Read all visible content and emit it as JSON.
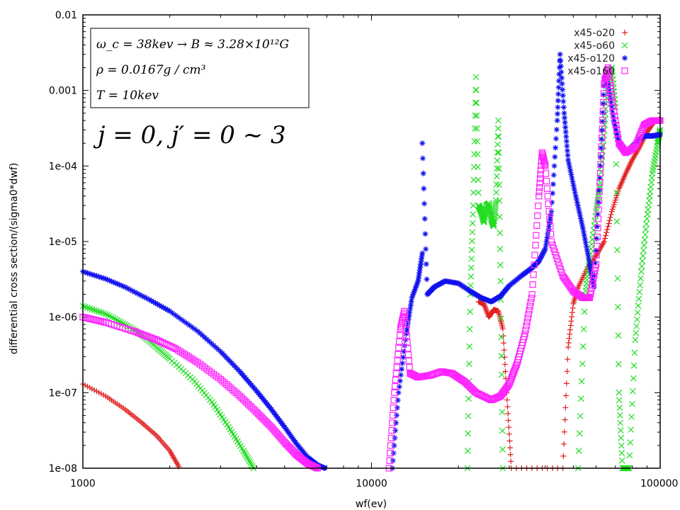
{
  "chart_data": {
    "type": "scatter",
    "title": "",
    "xlabel": "wf(ev)",
    "ylabel": "differential cross section/(sigma0*dwf)",
    "xscale": "log",
    "yscale": "log",
    "xlim": [
      1000,
      100000
    ],
    "ylim": [
      1e-08,
      0.01
    ],
    "x_ticks": [
      {
        "value": 1000,
        "label": "1000"
      },
      {
        "value": 10000,
        "label": "10000"
      },
      {
        "value": 100000,
        "label": "100000"
      }
    ],
    "y_ticks": [
      {
        "value": 0.01,
        "label": "0.01"
      },
      {
        "value": 0.001,
        "label": "0.001"
      },
      {
        "value": 0.0001,
        "label": "1e-04"
      },
      {
        "value": 1e-05,
        "label": "1e-05"
      },
      {
        "value": 1e-06,
        "label": "1e-06"
      },
      {
        "value": 1e-07,
        "label": "1e-07"
      },
      {
        "value": 1e-08,
        "label": "1e-08"
      }
    ],
    "grid": false,
    "legend_position": "top-right",
    "annotation_box": [
      "ω_c = 38kev → B ≈ 3.28×10¹²G",
      "ρ = 0.0167g / cm³",
      "T = 10kev"
    ],
    "annotation_large": "j = 0, j′ = 0 ~ 3",
    "series": [
      {
        "name": "x45-o20",
        "color": "#e02020",
        "marker": "plus",
        "points": [
          [
            1000,
            1.3e-07
          ],
          [
            1200,
            9e-08
          ],
          [
            1400,
            6e-08
          ],
          [
            1600,
            4e-08
          ],
          [
            1800,
            2.7e-08
          ],
          [
            2000,
            1.7e-08
          ],
          [
            2150,
            1.05e-08
          ],
          [
            23500,
            1.6e-06
          ],
          [
            24500,
            1.5e-06
          ],
          [
            25500,
            1e-06
          ],
          [
            26500,
            1.25e-06
          ],
          [
            27500,
            1.2e-06
          ],
          [
            28500,
            7e-07
          ],
          [
            29500,
            8e-08
          ],
          [
            30500,
            1e-08
          ],
          [
            46000,
            1e-08
          ],
          [
            48000,
            4e-07
          ],
          [
            50000,
            1.5e-06
          ],
          [
            52000,
            2.5e-06
          ],
          [
            56000,
            4.5e-06
          ],
          [
            60000,
            6.5e-06
          ],
          [
            64000,
            1e-05
          ],
          [
            68000,
            2.5e-05
          ],
          [
            72000,
            5e-05
          ],
          [
            76000,
            8e-05
          ],
          [
            80000,
            0.00012
          ],
          [
            85000,
            0.00018
          ],
          [
            90000,
            0.00028
          ],
          [
            95000,
            0.00038
          ],
          [
            100000,
            0.00042
          ]
        ]
      },
      {
        "name": "x45-o60",
        "color": "#22dd22",
        "marker": "cross",
        "points": [
          [
            1000,
            1.4e-06
          ],
          [
            1200,
            1.1e-06
          ],
          [
            1400,
            8e-07
          ],
          [
            1600,
            5.8e-07
          ],
          [
            1800,
            4e-07
          ],
          [
            2000,
            2.8e-07
          ],
          [
            2400,
            1.5e-07
          ],
          [
            2800,
            7.5e-08
          ],
          [
            3200,
            3.5e-08
          ],
          [
            3600,
            1.7e-08
          ],
          [
            3900,
            1e-08
          ],
          [
            21500,
            1e-08
          ],
          [
            22000,
            2e-06
          ],
          [
            22500,
            3e-05
          ],
          [
            23000,
            0.0015
          ],
          [
            23500,
            3e-05
          ],
          [
            24000,
            2.5e-05
          ],
          [
            24500,
            1.8e-05
          ],
          [
            25000,
            3e-05
          ],
          [
            25500,
            3.2e-05
          ],
          [
            26000,
            2e-05
          ],
          [
            26500,
            1.6e-05
          ],
          [
            27000,
            3.5e-05
          ],
          [
            27500,
            0.0004
          ],
          [
            28000,
            3e-06
          ],
          [
            28500,
            1e-08
          ],
          [
            52000,
            1e-08
          ],
          [
            55000,
            2e-06
          ],
          [
            57000,
            6e-06
          ],
          [
            60000,
            2.5e-05
          ],
          [
            62000,
            6e-05
          ],
          [
            64000,
            0.0003
          ],
          [
            66000,
            0.0015
          ],
          [
            68000,
            0.002
          ],
          [
            70000,
            0.0006
          ],
          [
            72000,
            1e-07
          ],
          [
            74000,
            1e-08
          ],
          [
            78000,
            1e-08
          ],
          [
            82000,
            5e-07
          ],
          [
            86000,
            4e-06
          ],
          [
            90000,
            2e-05
          ],
          [
            94000,
            8e-05
          ],
          [
            98000,
            0.0002
          ],
          [
            100000,
            0.0003
          ]
        ]
      },
      {
        "name": "x45-o120",
        "color": "#1010ee",
        "marker": "star",
        "points": [
          [
            1000,
            4e-06
          ],
          [
            1200,
            3.2e-06
          ],
          [
            1400,
            2.5e-06
          ],
          [
            1700,
            1.7e-06
          ],
          [
            2000,
            1.2e-06
          ],
          [
            2500,
            6.5e-07
          ],
          [
            3000,
            3.5e-07
          ],
          [
            3500,
            1.9e-07
          ],
          [
            4000,
            1.05e-07
          ],
          [
            4500,
            6e-08
          ],
          [
            5000,
            3.5e-08
          ],
          [
            5500,
            2.1e-08
          ],
          [
            6000,
            1.4e-08
          ],
          [
            6500,
            1.1e-08
          ],
          [
            6900,
            1e-08
          ],
          [
            11800,
            1e-08
          ],
          [
            12400,
            1e-07
          ],
          [
            13200,
            6e-07
          ],
          [
            13800,
            1.8e-06
          ],
          [
            14500,
            3e-06
          ],
          [
            15000,
            7e-06
          ],
          [
            15000,
            0.0002
          ],
          [
            15600,
            2e-06
          ],
          [
            16500,
            2.5e-06
          ],
          [
            18000,
            3e-06
          ],
          [
            20000,
            2.8e-06
          ],
          [
            22000,
            2.2e-06
          ],
          [
            24000,
            1.8e-06
          ],
          [
            26000,
            1.6e-06
          ],
          [
            28000,
            1.9e-06
          ],
          [
            30000,
            2.6e-06
          ],
          [
            33000,
            3.5e-06
          ],
          [
            36000,
            4.5e-06
          ],
          [
            38000,
            5.5e-06
          ],
          [
            40000,
            8e-06
          ],
          [
            42000,
            2.5e-05
          ],
          [
            44000,
            0.0004
          ],
          [
            45000,
            0.003
          ],
          [
            46500,
            0.0005
          ],
          [
            48000,
            0.00012
          ],
          [
            51000,
            4e-05
          ],
          [
            54000,
            1.5e-05
          ],
          [
            57000,
            5e-06
          ],
          [
            59000,
            2.5e-06
          ],
          [
            62000,
            0.0001
          ],
          [
            64000,
            0.0015
          ],
          [
            66000,
            0.0012
          ],
          [
            69000,
            0.0004
          ],
          [
            72000,
            0.0002
          ],
          [
            76000,
            0.00015
          ],
          [
            82000,
            0.0002
          ],
          [
            88000,
            0.00025
          ],
          [
            94000,
            0.00025
          ],
          [
            100000,
            0.00026
          ]
        ]
      },
      {
        "name": "x45-o160",
        "color": "#ff22ff",
        "marker": "square",
        "points": [
          [
            1000,
            1e-06
          ],
          [
            1200,
            8.5e-07
          ],
          [
            1500,
            6.5e-07
          ],
          [
            1800,
            5e-07
          ],
          [
            2100,
            3.8e-07
          ],
          [
            2500,
            2.5e-07
          ],
          [
            3000,
            1.5e-07
          ],
          [
            3500,
            9e-08
          ],
          [
            4000,
            5.5e-08
          ],
          [
            4500,
            3.5e-08
          ],
          [
            5000,
            2.2e-08
          ],
          [
            5500,
            1.5e-08
          ],
          [
            6000,
            1.15e-08
          ],
          [
            6500,
            1e-08
          ],
          [
            11500,
            1e-08
          ],
          [
            12000,
            1e-07
          ],
          [
            12600,
            7e-07
          ],
          [
            13000,
            1.2e-06
          ],
          [
            13600,
            1.8e-07
          ],
          [
            14500,
            1.6e-07
          ],
          [
            16000,
            1.7e-07
          ],
          [
            17500,
            1.9e-07
          ],
          [
            19000,
            1.8e-07
          ],
          [
            21000,
            1.4e-07
          ],
          [
            23000,
            1e-07
          ],
          [
            26000,
            8e-08
          ],
          [
            28000,
            9e-08
          ],
          [
            30000,
            1.3e-07
          ],
          [
            32000,
            2.5e-07
          ],
          [
            34000,
            6e-07
          ],
          [
            36000,
            2e-06
          ],
          [
            38000,
            4e-05
          ],
          [
            39000,
            0.00015
          ],
          [
            40000,
            0.0001
          ],
          [
            42000,
            1e-05
          ],
          [
            46000,
            3.5e-06
          ],
          [
            50000,
            2.2e-06
          ],
          [
            54000,
            1.8e-06
          ],
          [
            57000,
            1.8e-06
          ],
          [
            60000,
            5e-06
          ],
          [
            62000,
            8e-05
          ],
          [
            64000,
            0.0012
          ],
          [
            66000,
            0.002
          ],
          [
            68000,
            0.0008
          ],
          [
            72000,
            0.0002
          ],
          [
            76000,
            0.00015
          ],
          [
            82000,
            0.00018
          ],
          [
            88000,
            0.00035
          ],
          [
            94000,
            0.0004
          ],
          [
            100000,
            0.0004
          ]
        ]
      }
    ]
  }
}
